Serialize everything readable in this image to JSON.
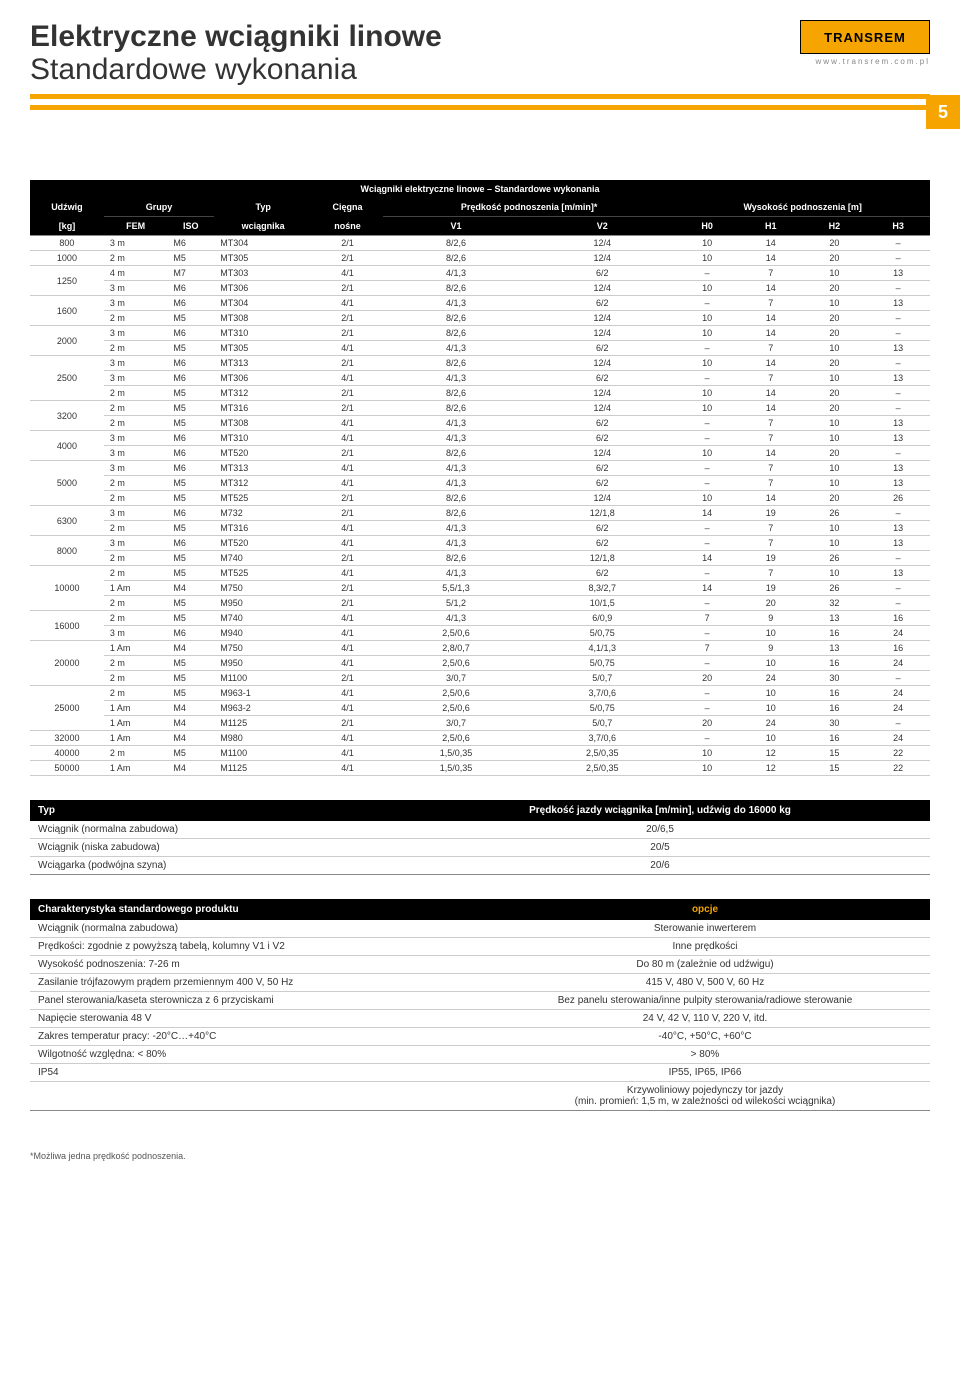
{
  "header": {
    "title_main": "Elektryczne wciągniki linowe",
    "title_sub": "Standardowe wykonania",
    "logo_text": "TRANSREM",
    "logo_url": "www.transrem.com.pl",
    "page_number": "5"
  },
  "main_table": {
    "caption": "Wciągniki elektryczne linowe – Standardowe wykonania",
    "header_row1": {
      "udzwig": "Udźwig",
      "grupy": "Grupy",
      "typ": "Typ",
      "ciegna": "Cięgna",
      "predkosc": "Prędkość podnoszenia [m/min]*",
      "wysokosc": "Wysokość podnoszenia [m]"
    },
    "header_row2": {
      "kg": "[kg]",
      "fem": "FEM",
      "iso": "ISO",
      "wciagnika": "wciągnika",
      "nosne": "nośne",
      "v1": "V1",
      "v2": "V2",
      "h0": "H0",
      "h1": "H1",
      "h2": "H2",
      "h3": "H3"
    },
    "groups": [
      {
        "udzwig": "800",
        "rows": [
          [
            "3 m",
            "M6",
            "MT304",
            "2/1",
            "8/2,6",
            "12/4",
            "10",
            "14",
            "20",
            "–"
          ]
        ]
      },
      {
        "udzwig": "1000",
        "rows": [
          [
            "2 m",
            "M5",
            "MT305",
            "2/1",
            "8/2,6",
            "12/4",
            "10",
            "14",
            "20",
            "–"
          ]
        ]
      },
      {
        "udzwig": "1250",
        "rows": [
          [
            "4 m",
            "M7",
            "MT303",
            "4/1",
            "4/1,3",
            "6/2",
            "–",
            "7",
            "10",
            "13"
          ],
          [
            "3 m",
            "M6",
            "MT306",
            "2/1",
            "8/2,6",
            "12/4",
            "10",
            "14",
            "20",
            "–"
          ]
        ]
      },
      {
        "udzwig": "1600",
        "rows": [
          [
            "3 m",
            "M6",
            "MT304",
            "4/1",
            "4/1,3",
            "6/2",
            "–",
            "7",
            "10",
            "13"
          ],
          [
            "2 m",
            "M5",
            "MT308",
            "2/1",
            "8/2,6",
            "12/4",
            "10",
            "14",
            "20",
            "–"
          ]
        ]
      },
      {
        "udzwig": "2000",
        "rows": [
          [
            "3 m",
            "M6",
            "MT310",
            "2/1",
            "8/2,6",
            "12/4",
            "10",
            "14",
            "20",
            "–"
          ],
          [
            "2 m",
            "M5",
            "MT305",
            "4/1",
            "4/1,3",
            "6/2",
            "–",
            "7",
            "10",
            "13"
          ]
        ]
      },
      {
        "udzwig": "2500",
        "rows": [
          [
            "3 m",
            "M6",
            "MT313",
            "2/1",
            "8/2,6",
            "12/4",
            "10",
            "14",
            "20",
            "–"
          ],
          [
            "3 m",
            "M6",
            "MT306",
            "4/1",
            "4/1,3",
            "6/2",
            "–",
            "7",
            "10",
            "13"
          ],
          [
            "2 m",
            "M5",
            "MT312",
            "2/1",
            "8/2,6",
            "12/4",
            "10",
            "14",
            "20",
            "–"
          ]
        ]
      },
      {
        "udzwig": "3200",
        "rows": [
          [
            "2 m",
            "M5",
            "MT316",
            "2/1",
            "8/2,6",
            "12/4",
            "10",
            "14",
            "20",
            "–"
          ],
          [
            "2 m",
            "M5",
            "MT308",
            "4/1",
            "4/1,3",
            "6/2",
            "–",
            "7",
            "10",
            "13"
          ]
        ]
      },
      {
        "udzwig": "4000",
        "rows": [
          [
            "3 m",
            "M6",
            "MT310",
            "4/1",
            "4/1,3",
            "6/2",
            "–",
            "7",
            "10",
            "13"
          ],
          [
            "3 m",
            "M6",
            "MT520",
            "2/1",
            "8/2,6",
            "12/4",
            "10",
            "14",
            "20",
            "–"
          ]
        ]
      },
      {
        "udzwig": "5000",
        "rows": [
          [
            "3 m",
            "M6",
            "MT313",
            "4/1",
            "4/1,3",
            "6/2",
            "–",
            "7",
            "10",
            "13"
          ],
          [
            "2 m",
            "M5",
            "MT312",
            "4/1",
            "4/1,3",
            "6/2",
            "–",
            "7",
            "10",
            "13"
          ],
          [
            "2 m",
            "M5",
            "MT525",
            "2/1",
            "8/2,6",
            "12/4",
            "10",
            "14",
            "20",
            "26"
          ]
        ]
      },
      {
        "udzwig": "6300",
        "rows": [
          [
            "3 m",
            "M6",
            "M732",
            "2/1",
            "8/2,6",
            "12/1,8",
            "14",
            "19",
            "26",
            "–"
          ],
          [
            "2 m",
            "M5",
            "MT316",
            "4/1",
            "4/1,3",
            "6/2",
            "–",
            "7",
            "10",
            "13"
          ]
        ]
      },
      {
        "udzwig": "8000",
        "rows": [
          [
            "3 m",
            "M6",
            "MT520",
            "4/1",
            "4/1,3",
            "6/2",
            "–",
            "7",
            "10",
            "13"
          ],
          [
            "2 m",
            "M5",
            "M740",
            "2/1",
            "8/2,6",
            "12/1,8",
            "14",
            "19",
            "26",
            "–"
          ]
        ]
      },
      {
        "udzwig": "10000",
        "rows": [
          [
            "2 m",
            "M5",
            "MT525",
            "4/1",
            "4/1,3",
            "6/2",
            "–",
            "7",
            "10",
            "13"
          ],
          [
            "1 Am",
            "M4",
            "M750",
            "2/1",
            "5,5/1,3",
            "8,3/2,7",
            "14",
            "19",
            "26",
            "–"
          ],
          [
            "2 m",
            "M5",
            "M950",
            "2/1",
            "5/1,2",
            "10/1,5",
            "–",
            "20",
            "32",
            "–"
          ]
        ]
      },
      {
        "udzwig": "16000",
        "rows": [
          [
            "2 m",
            "M5",
            "M740",
            "4/1",
            "4/1,3",
            "6/0,9",
            "7",
            "9",
            "13",
            "16"
          ],
          [
            "3 m",
            "M6",
            "M940",
            "4/1",
            "2,5/0,6",
            "5/0,75",
            "–",
            "10",
            "16",
            "24"
          ]
        ]
      },
      {
        "udzwig": "20000",
        "rows": [
          [
            "1 Am",
            "M4",
            "M750",
            "4/1",
            "2,8/0,7",
            "4,1/1,3",
            "7",
            "9",
            "13",
            "16"
          ],
          [
            "2 m",
            "M5",
            "M950",
            "4/1",
            "2,5/0,6",
            "5/0,75",
            "–",
            "10",
            "16",
            "24"
          ],
          [
            "2 m",
            "M5",
            "M1100",
            "2/1",
            "3/0,7",
            "5/0,7",
            "20",
            "24",
            "30",
            "–"
          ]
        ]
      },
      {
        "udzwig": "25000",
        "rows": [
          [
            "2 m",
            "M5",
            "M963-1",
            "4/1",
            "2,5/0,6",
            "3,7/0,6",
            "–",
            "10",
            "16",
            "24"
          ],
          [
            "1 Am",
            "M4",
            "M963-2",
            "4/1",
            "2,5/0,6",
            "5/0,75",
            "–",
            "10",
            "16",
            "24"
          ],
          [
            "1 Am",
            "M4",
            "M1125",
            "2/1",
            "3/0,7",
            "5/0,7",
            "20",
            "24",
            "30",
            "–"
          ]
        ]
      },
      {
        "udzwig": "32000",
        "rows": [
          [
            "1 Am",
            "M4",
            "M980",
            "4/1",
            "2,5/0,6",
            "3,7/0,6",
            "–",
            "10",
            "16",
            "24"
          ]
        ]
      },
      {
        "udzwig": "40000",
        "rows": [
          [
            "2 m",
            "M5",
            "M1100",
            "4/1",
            "1,5/0,35",
            "2,5/0,35",
            "10",
            "12",
            "15",
            "22"
          ]
        ]
      },
      {
        "udzwig": "50000",
        "rows": [
          [
            "1 Am",
            "M4",
            "M1125",
            "4/1",
            "1,5/0,35",
            "2,5/0,35",
            "10",
            "12",
            "15",
            "22"
          ]
        ]
      }
    ]
  },
  "speed_table": {
    "h_typ": "Typ",
    "h_val": "Prędkość jazdy wciągnika [m/min], udźwig do 16000 kg",
    "rows": [
      [
        "Wciągnik (normalna zabudowa)",
        "20/6,5"
      ],
      [
        "Wciągnik (niska zabudowa)",
        "20/5"
      ],
      [
        "Wciągarka (podwójna szyna)",
        "20/6"
      ]
    ]
  },
  "options_table": {
    "h_left": "Charakterystyka standardowego produktu",
    "h_right": "opcje",
    "rows": [
      [
        "Wciągnik (normalna zabudowa)",
        "Sterowanie inwerterem"
      ],
      [
        "Prędkości: zgodnie z powyższą tabelą, kolumny V1 i V2",
        "Inne prędkości"
      ],
      [
        "Wysokość podnoszenia: 7-26 m",
        "Do 80 m (zależnie od udźwigu)"
      ],
      [
        "Zasilanie trójfazowym prądem przemiennym 400 V, 50 Hz",
        "415 V, 480 V, 500 V, 60 Hz"
      ],
      [
        "Panel sterowania/kaseta sterownicza z 6 przyciskami",
        "Bez panelu sterowania/inne pulpity sterowania/radiowe sterowanie"
      ],
      [
        "Napięcie sterowania 48 V",
        "24 V, 42 V, 110 V, 220 V, itd."
      ],
      [
        "Zakres temperatur pracy: -20°C…+40°C",
        "-40°C, +50°C, +60°C"
      ],
      [
        "Wilgotność względna: < 80%",
        "> 80%"
      ],
      [
        "IP54",
        "IP55, IP65, IP66"
      ],
      [
        "",
        "Krzywoliniowy pojedynczy tor jazdy\n(min. promień: 1,5 m, w zależności od wilekości wciągnika)"
      ]
    ]
  },
  "footnote": "*Możliwa jedna prędkość podnoszenia."
}
